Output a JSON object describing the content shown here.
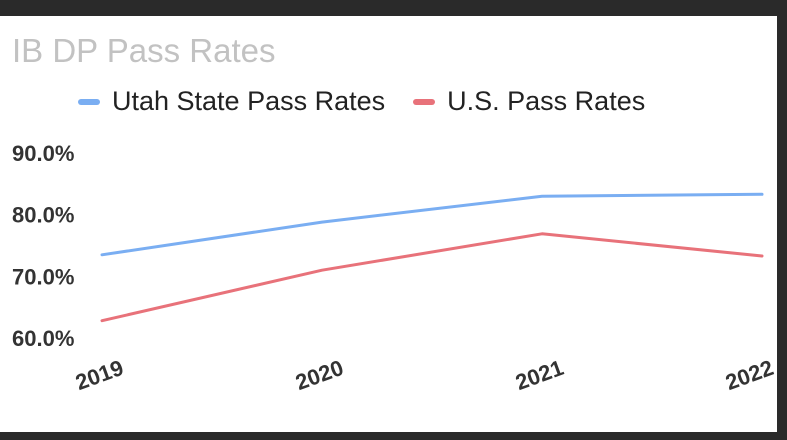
{
  "chart_data": {
    "type": "line",
    "title": "IB DP Pass Rates",
    "xlabel": "",
    "ylabel": "",
    "categories": [
      "2019",
      "2020",
      "2021",
      "2022"
    ],
    "y_tick_labels": [
      "90.0%",
      "80.0%",
      "70.0%",
      "60.0%"
    ],
    "ylim": [
      60,
      90
    ],
    "legend_position": "top",
    "series": [
      {
        "name": "Utah State Pass Rates",
        "color": "#7aaef2",
        "values": [
          73.5,
          78.8,
          83.0,
          83.3
        ]
      },
      {
        "name": "U.S. Pass Rates",
        "color": "#e8727a",
        "values": [
          62.8,
          71.0,
          76.9,
          73.3
        ]
      }
    ]
  }
}
